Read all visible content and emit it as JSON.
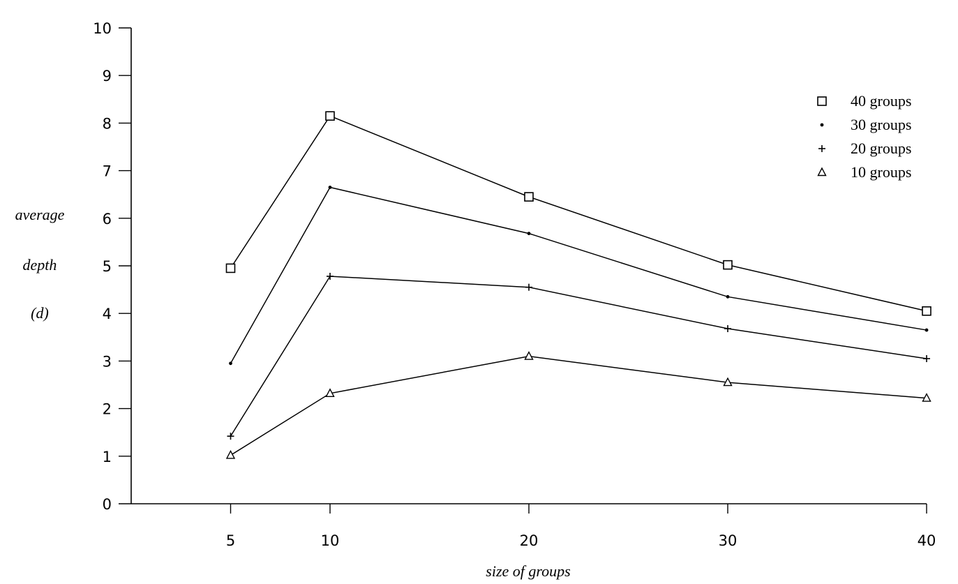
{
  "chart_data": {
    "type": "line",
    "xlabel": "size of groups",
    "ylabel": [
      "average",
      "depth",
      "(d)"
    ],
    "x": [
      5,
      10,
      20,
      30,
      40
    ],
    "xticks": [
      "5",
      "10",
      "20",
      "30",
      "40"
    ],
    "yticks": [
      "0",
      "1",
      "2",
      "3",
      "4",
      "5",
      "6",
      "7",
      "8",
      "9",
      "10"
    ],
    "ylim": [
      0,
      10
    ],
    "grid": false,
    "legend_position": "top-right",
    "series": [
      {
        "name": "40 groups",
        "marker": "square",
        "values": [
          4.95,
          8.15,
          6.45,
          5.02,
          4.05
        ]
      },
      {
        "name": "30 groups",
        "marker": "dot",
        "values": [
          2.95,
          6.65,
          5.68,
          4.35,
          3.65
        ]
      },
      {
        "name": "20 groups",
        "marker": "plus",
        "values": [
          1.42,
          4.78,
          4.55,
          3.68,
          3.05
        ]
      },
      {
        "name": "10 groups",
        "marker": "triangle",
        "values": [
          1.02,
          2.32,
          3.1,
          2.55,
          2.22
        ]
      }
    ]
  }
}
